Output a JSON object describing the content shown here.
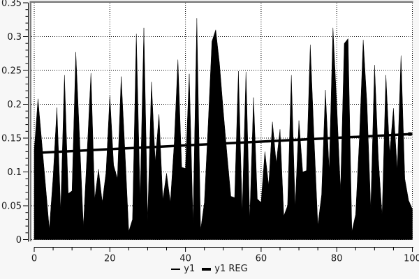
{
  "figure": {
    "background": "#f7f7f7",
    "plot_background": "#ffffff",
    "frame_color": "#7d7d7d",
    "axis_color": "#000000",
    "grid_color": "#000000",
    "series_color": "#000000",
    "text_color": "#1a1a1a"
  },
  "legend": {
    "position": "bottom-center",
    "items": [
      {
        "label": "y1",
        "swatch": "thin-line"
      },
      {
        "label": "y1 REG",
        "swatch": "thick-line"
      }
    ]
  },
  "chart_data": {
    "type": "area",
    "title": "",
    "xlabel": "",
    "ylabel": "",
    "xlim": [
      0,
      100
    ],
    "ylim": [
      0,
      0.35
    ],
    "xticks": [
      0,
      20,
      40,
      60,
      80,
      100
    ],
    "xtick_labels": [
      "0",
      "20",
      "40",
      "60",
      "80",
      "100"
    ],
    "x_minor_step": 5,
    "yticks": [
      0,
      0.05,
      0.1,
      0.15,
      0.2,
      0.25,
      0.3,
      0.35
    ],
    "ytick_labels": [
      "0",
      "0.05",
      "0.1",
      "0.15",
      "0.2",
      "0.25",
      "0.3",
      "0.35"
    ],
    "y_minor_step": 0.01,
    "grid": "dotted",
    "legend_position": "bottom-center",
    "x": [
      0,
      1,
      2,
      3,
      4,
      5,
      6,
      7,
      8,
      9,
      10,
      11,
      12,
      13,
      14,
      15,
      16,
      17,
      18,
      19,
      20,
      21,
      22,
      23,
      24,
      25,
      26,
      27,
      28,
      29,
      30,
      31,
      32,
      33,
      34,
      35,
      36,
      37,
      38,
      39,
      40,
      41,
      42,
      43,
      44,
      45,
      46,
      47,
      48,
      49,
      50,
      51,
      52,
      53,
      54,
      55,
      56,
      57,
      58,
      59,
      60,
      61,
      62,
      63,
      64,
      65,
      66,
      67,
      68,
      69,
      70,
      71,
      72,
      73,
      74,
      75,
      76,
      77,
      78,
      79,
      80,
      81,
      82,
      83,
      84,
      85,
      86,
      87,
      88,
      89,
      90,
      91,
      92,
      93,
      94,
      95,
      96,
      97,
      98,
      99,
      100
    ],
    "series": [
      {
        "name": "y1",
        "render": "area",
        "values": [
          0.132,
          0.208,
          0.144,
          0.08,
          0.015,
          0.093,
          0.195,
          0.043,
          0.243,
          0.068,
          0.072,
          0.277,
          0.15,
          0.019,
          0.13,
          0.246,
          0.06,
          0.104,
          0.055,
          0.1,
          0.213,
          0.11,
          0.09,
          0.241,
          0.13,
          0.012,
          0.03,
          0.304,
          0.06,
          0.313,
          0.028,
          0.233,
          0.115,
          0.185,
          0.059,
          0.098,
          0.055,
          0.14,
          0.266,
          0.107,
          0.105,
          0.245,
          0.024,
          0.327,
          0.014,
          0.055,
          0.17,
          0.293,
          0.31,
          0.26,
          0.19,
          0.125,
          0.064,
          0.062,
          0.249,
          0.04,
          0.248,
          0.03,
          0.21,
          0.06,
          0.055,
          0.13,
          0.08,
          0.174,
          0.113,
          0.163,
          0.035,
          0.05,
          0.243,
          0.048,
          0.176,
          0.1,
          0.102,
          0.288,
          0.15,
          0.021,
          0.066,
          0.221,
          0.102,
          0.313,
          0.2,
          0.072,
          0.29,
          0.297,
          0.012,
          0.037,
          0.15,
          0.295,
          0.2,
          0.045,
          0.258,
          0.12,
          0.035,
          0.243,
          0.127,
          0.194,
          0.103,
          0.272,
          0.09,
          0.058,
          0.045
        ]
      },
      {
        "name": "y1 REG",
        "render": "line",
        "endpoints": {
          "x0": 0,
          "y0": 0.128,
          "x1": 100,
          "y1": 0.156
        }
      }
    ]
  }
}
